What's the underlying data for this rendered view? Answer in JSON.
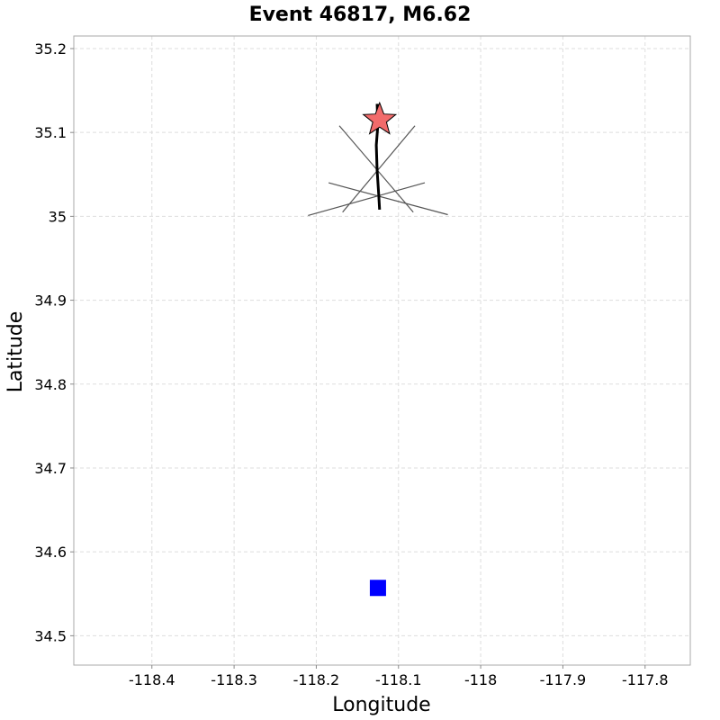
{
  "chart_data": {
    "type": "scatter",
    "title": "Event 46817, M6.62",
    "xlabel": "Longitude",
    "ylabel": "Latitude",
    "xlim": [
      -118.495,
      -117.745
    ],
    "ylim": [
      34.465,
      35.215
    ],
    "x_ticks": [
      -118.4,
      -118.3,
      -118.2,
      -118.1,
      -118.0,
      -117.9,
      -117.8
    ],
    "x_tick_labels": [
      "-118.4",
      "-118.3",
      "-118.2",
      "-118.1",
      "-118",
      "-117.9",
      "-117.8"
    ],
    "y_ticks": [
      34.5,
      34.6,
      34.7,
      34.8,
      34.9,
      35.0,
      35.1,
      35.2
    ],
    "y_tick_labels": [
      "34.5",
      "34.6",
      "34.7",
      "34.8",
      "34.9",
      "35",
      "35.1",
      "35.2"
    ],
    "grid": true,
    "colors": {
      "hypocenter_fill": "#f26b6b",
      "station_fill": "#0000ff",
      "rupture_trace": "#000000",
      "subsection_lines": "#555555"
    },
    "rupture_trace": [
      [
        -118.126,
        35.134
      ],
      [
        -118.125,
        35.11
      ],
      [
        -118.127,
        35.085
      ],
      [
        -118.126,
        35.055
      ],
      [
        -118.124,
        35.025
      ],
      [
        -118.123,
        35.008
      ]
    ],
    "subsection_lines": [
      [
        [
          -118.172,
          35.108
        ],
        [
          -118.082,
          35.005
        ]
      ],
      [
        [
          -118.08,
          35.108
        ],
        [
          -118.168,
          35.005
        ]
      ],
      [
        [
          -118.185,
          35.04
        ],
        [
          -118.04,
          35.002
        ]
      ],
      [
        [
          -118.068,
          35.04
        ],
        [
          -118.21,
          35.001
        ]
      ]
    ],
    "hypocenter": {
      "x": -118.123,
      "y": 35.115,
      "marker": "star"
    },
    "station": {
      "x": -118.125,
      "y": 34.557,
      "marker": "square"
    }
  }
}
